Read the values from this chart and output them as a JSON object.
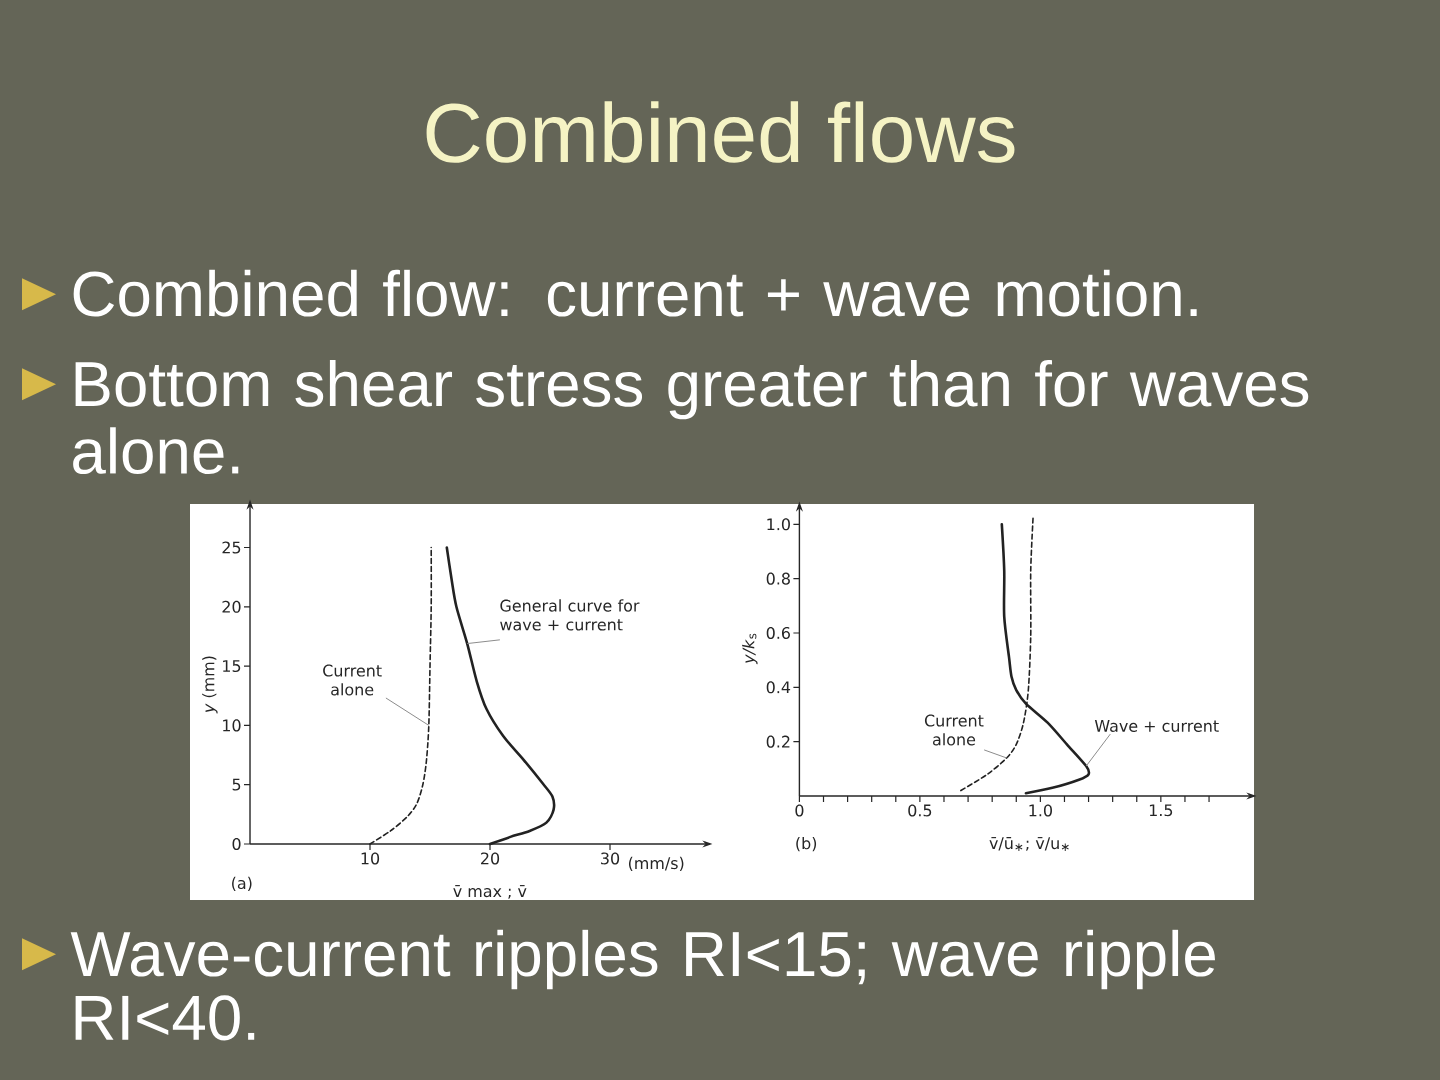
{
  "chart_data": [
    {
      "type": "other",
      "title": "Combined flows",
      "annotations": [
        "Combined flow: current + wave motion.",
        "Bottom shear stress greater than for waves alone."
      ]
    },
    {
      "type": "line",
      "xlabel": "v̄ max ; v̄",
      "ylabel": "*y* (mm)",
      "xlim": [
        0,
        38
      ],
      "ylim": [
        0,
        28.5
      ],
      "xticks": [
        10,
        20,
        30
      ],
      "yticks": [
        0,
        5,
        10,
        15,
        20,
        25
      ],
      "series": [
        {
          "name": "Current alone",
          "color": "#222222",
          "line_style": "dashed",
          "x": [
            10,
            11.7,
            13.1,
            13.9,
            14.4,
            14.7,
            14.9,
            15.0,
            15.1,
            15.1
          ],
          "values": [
            0,
            1.1,
            2.3,
            3.4,
            5,
            7,
            10,
            15,
            20,
            25
          ]
        },
        {
          "name": "General curve for wave + current",
          "color": "#222222",
          "line_style": "solid",
          "x": [
            20,
            21.7,
            23.3,
            24.7,
            25.3,
            25.2,
            24.4,
            22.8,
            21.1,
            19.7,
            18.9,
            18.1,
            17.2,
            16.8,
            16.4
          ],
          "values": [
            0,
            0.6,
            1.1,
            1.8,
            2.9,
            4.0,
            5.1,
            7.1,
            9.1,
            11.4,
            13.7,
            16.9,
            20,
            22.3,
            25
          ]
        }
      ],
      "annotations": [
        "(mm/s)",
        "(a)"
      ]
    },
    {
      "type": "line",
      "xlabel": "v̄/ū$_{∗}$; v̄/u$_{∗}$",
      "ylabel": "*y/k*$_{s}$",
      "xlim": [
        0,
        1.87
      ],
      "ylim": [
        0,
        1.06
      ],
      "xticks": [
        0,
        {
          "value": 0.1,
          "label": null
        },
        {
          "value": 0.2,
          "label": null
        },
        {
          "value": 0.3,
          "label": null
        },
        {
          "value": 0.4,
          "label": null
        },
        0.5,
        {
          "value": 0.6,
          "label": null
        },
        {
          "value": 0.7,
          "label": null
        },
        {
          "value": 0.8,
          "label": null
        },
        {
          "value": 0.9,
          "label": null
        },
        {
          "value": 1,
          "label": "1.0"
        },
        {
          "value": 1.1,
          "label": null
        },
        {
          "value": 1.2,
          "label": null
        },
        {
          "value": 1.3,
          "label": null
        },
        {
          "value": 1.4,
          "label": null
        },
        1.5,
        {
          "value": 1.6,
          "label": null
        },
        {
          "value": 1.7,
          "label": null
        }
      ],
      "yticks": [
        0.2,
        0.4,
        0.6,
        0.8,
        {
          "value": 1,
          "label": "1.0"
        }
      ],
      "series": [
        {
          "name": "Current alone",
          "color": "#222222",
          "line_style": "dashed",
          "x": [
            0.67,
            0.78,
            0.86,
            0.9,
            0.93,
            0.95,
            0.96,
            0.96,
            0.97
          ],
          "values": [
            0.02,
            0.08,
            0.14,
            0.19,
            0.27,
            0.39,
            0.59,
            0.83,
            1.03
          ]
        },
        {
          "name": "Wave + current",
          "color": "#222222",
          "line_style": "solid",
          "x": [
            0.94,
            1.05,
            1.16,
            1.2,
            1.19,
            1.11,
            1.03,
            0.94,
            0.9,
            0.88,
            0.87,
            0.85,
            0.85,
            0.84
          ],
          "values": [
            0.01,
            0.03,
            0.06,
            0.08,
            0.11,
            0.19,
            0.27,
            0.34,
            0.39,
            0.44,
            0.51,
            0.66,
            0.83,
            1.0
          ]
        }
      ],
      "annotations": [
        "(b)"
      ]
    },
    {
      "type": "other",
      "annotations": [
        "Wave-current ripples RI<15; wave ripple RI<40."
      ]
    }
  ]
}
